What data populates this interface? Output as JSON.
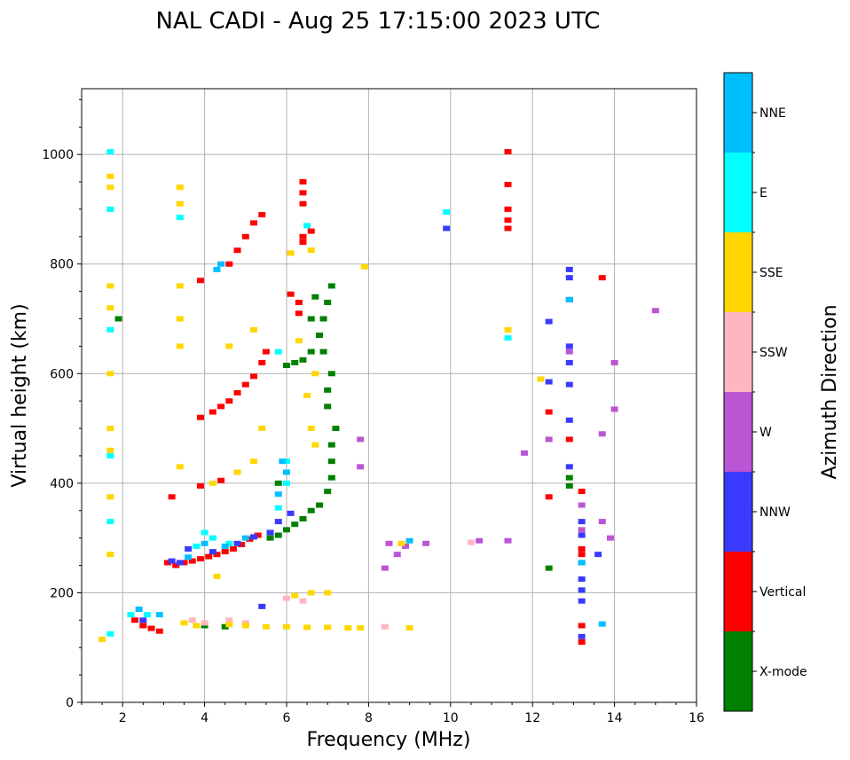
{
  "chart_data": {
    "type": "scatter",
    "title": "NAL CADI - Aug 25 17:15:00 2023 UTC",
    "xlabel": "Frequency (MHz)",
    "ylabel": "Virtual height (km)",
    "xlim": [
      1,
      16
    ],
    "ylim": [
      0,
      1120
    ],
    "xticks": [
      2,
      4,
      6,
      8,
      10,
      12,
      14,
      16
    ],
    "yticks": [
      0,
      200,
      400,
      600,
      800,
      1000
    ],
    "grid": true,
    "colorbar": {
      "label": "Azimuth Direction",
      "categories": [
        {
          "name": "NNE",
          "color": "#00bfff"
        },
        {
          "name": "E",
          "color": "#00ffff"
        },
        {
          "name": "SSE",
          "color": "#ffd700"
        },
        {
          "name": "SSW",
          "color": "#ffb6c1"
        },
        {
          "name": "W",
          "color": "#ba55d3"
        },
        {
          "name": "NNW",
          "color": "#3a3aff"
        },
        {
          "name": "Vertical",
          "color": "#ff0000"
        },
        {
          "name": "X-mode",
          "color": "#008000"
        }
      ]
    },
    "series": [
      {
        "name": "Vertical",
        "points": [
          [
            2.3,
            150
          ],
          [
            2.5,
            140
          ],
          [
            2.7,
            135
          ],
          [
            2.9,
            130
          ],
          [
            3.1,
            255
          ],
          [
            3.3,
            250
          ],
          [
            3.5,
            255
          ],
          [
            3.7,
            258
          ],
          [
            3.9,
            262
          ],
          [
            4.1,
            266
          ],
          [
            4.3,
            270
          ],
          [
            4.5,
            275
          ],
          [
            4.7,
            280
          ],
          [
            4.9,
            288
          ],
          [
            5.1,
            298
          ],
          [
            5.3,
            305
          ],
          [
            3.2,
            375
          ],
          [
            3.9,
            395
          ],
          [
            4.4,
            405
          ],
          [
            3.9,
            520
          ],
          [
            4.2,
            530
          ],
          [
            4.4,
            540
          ],
          [
            4.6,
            550
          ],
          [
            4.8,
            565
          ],
          [
            5.0,
            580
          ],
          [
            5.2,
            595
          ],
          [
            5.4,
            620
          ],
          [
            5.5,
            640
          ],
          [
            3.9,
            770
          ],
          [
            4.6,
            800
          ],
          [
            4.8,
            825
          ],
          [
            5.0,
            850
          ],
          [
            5.2,
            875
          ],
          [
            5.4,
            890
          ],
          [
            6.1,
            745
          ],
          [
            6.3,
            730
          ],
          [
            6.3,
            710
          ],
          [
            6.4,
            910
          ],
          [
            6.4,
            930
          ],
          [
            6.4,
            950
          ],
          [
            6.4,
            840
          ],
          [
            6.4,
            850
          ],
          [
            6.6,
            860
          ],
          [
            11.4,
            1005
          ],
          [
            11.4,
            945
          ],
          [
            11.4,
            900
          ],
          [
            11.4,
            880
          ],
          [
            11.4,
            865
          ],
          [
            13.2,
            385
          ],
          [
            13.2,
            280
          ],
          [
            13.2,
            270
          ],
          [
            13.2,
            140
          ],
          [
            13.2,
            110
          ],
          [
            12.9,
            480
          ],
          [
            12.4,
            530
          ],
          [
            12.4,
            375
          ],
          [
            13.7,
            775
          ]
        ]
      },
      {
        "name": "X-mode",
        "points": [
          [
            5.6,
            300
          ],
          [
            5.8,
            305
          ],
          [
            6.0,
            315
          ],
          [
            6.2,
            325
          ],
          [
            6.4,
            335
          ],
          [
            6.6,
            350
          ],
          [
            6.8,
            360
          ],
          [
            7.0,
            385
          ],
          [
            7.1,
            410
          ],
          [
            7.1,
            440
          ],
          [
            7.1,
            470
          ],
          [
            7.2,
            500
          ],
          [
            6.0,
            615
          ],
          [
            6.2,
            620
          ],
          [
            6.4,
            625
          ],
          [
            6.6,
            640
          ],
          [
            6.8,
            670
          ],
          [
            6.9,
            700
          ],
          [
            7.0,
            730
          ],
          [
            7.1,
            760
          ],
          [
            7.1,
            600
          ],
          [
            7.0,
            570
          ],
          [
            7.0,
            540
          ],
          [
            5.8,
            400
          ],
          [
            6.6,
            700
          ],
          [
            6.7,
            740
          ],
          [
            6.9,
            640
          ],
          [
            1.9,
            700
          ],
          [
            4.0,
            140
          ],
          [
            4.5,
            138
          ],
          [
            12.9,
            410
          ],
          [
            12.9,
            395
          ],
          [
            12.4,
            245
          ]
        ]
      },
      {
        "name": "NNW",
        "points": [
          [
            2.5,
            150
          ],
          [
            3.2,
            258
          ],
          [
            3.4,
            255
          ],
          [
            3.6,
            280
          ],
          [
            4.2,
            275
          ],
          [
            4.8,
            290
          ],
          [
            5.2,
            302
          ],
          [
            5.6,
            310
          ],
          [
            5.8,
            330
          ],
          [
            6.1,
            345
          ],
          [
            5.4,
            175
          ],
          [
            12.9,
            790
          ],
          [
            12.9,
            775
          ],
          [
            12.9,
            735
          ],
          [
            12.9,
            650
          ],
          [
            12.9,
            620
          ],
          [
            12.9,
            580
          ],
          [
            12.9,
            515
          ],
          [
            12.9,
            430
          ],
          [
            13.2,
            330
          ],
          [
            13.2,
            305
          ],
          [
            13.2,
            255
          ],
          [
            13.2,
            225
          ],
          [
            13.2,
            205
          ],
          [
            13.2,
            185
          ],
          [
            13.2,
            120
          ],
          [
            13.6,
            270
          ],
          [
            9.9,
            865
          ],
          [
            12.4,
            695
          ],
          [
            12.4,
            585
          ]
        ]
      },
      {
        "name": "W",
        "points": [
          [
            8.5,
            290
          ],
          [
            8.9,
            285
          ],
          [
            9.4,
            290
          ],
          [
            10.7,
            295
          ],
          [
            11.4,
            295
          ],
          [
            12.9,
            640
          ],
          [
            13.2,
            360
          ],
          [
            13.2,
            315
          ],
          [
            13.7,
            330
          ],
          [
            13.9,
            300
          ],
          [
            14.0,
            620
          ],
          [
            14.0,
            535
          ],
          [
            13.7,
            490
          ],
          [
            11.8,
            455
          ],
          [
            12.4,
            480
          ],
          [
            15.0,
            715
          ],
          [
            8.4,
            245
          ],
          [
            8.7,
            270
          ],
          [
            7.8,
            430
          ],
          [
            7.8,
            480
          ]
        ]
      },
      {
        "name": "SSW",
        "points": [
          [
            3.7,
            150
          ],
          [
            4.0,
            145
          ],
          [
            4.6,
            150
          ],
          [
            5.0,
            145
          ],
          [
            6.0,
            190
          ],
          [
            6.4,
            185
          ],
          [
            8.4,
            138
          ],
          [
            10.5,
            292
          ]
        ]
      },
      {
        "name": "SSE",
        "points": [
          [
            1.5,
            115
          ],
          [
            3.5,
            145
          ],
          [
            3.8,
            140
          ],
          [
            4.6,
            142
          ],
          [
            5.0,
            140
          ],
          [
            5.5,
            138
          ],
          [
            6.0,
            138
          ],
          [
            6.5,
            137
          ],
          [
            7.0,
            137
          ],
          [
            7.5,
            136
          ],
          [
            7.8,
            136
          ],
          [
            9.0,
            136
          ],
          [
            6.6,
            200
          ],
          [
            7.0,
            200
          ],
          [
            6.2,
            195
          ],
          [
            4.2,
            400
          ],
          [
            4.8,
            420
          ],
          [
            5.2,
            440
          ],
          [
            5.4,
            500
          ],
          [
            6.6,
            500
          ],
          [
            6.7,
            470
          ],
          [
            6.5,
            560
          ],
          [
            6.7,
            600
          ],
          [
            6.3,
            660
          ],
          [
            5.2,
            680
          ],
          [
            6.1,
            820
          ],
          [
            6.6,
            825
          ],
          [
            7.9,
            795
          ],
          [
            3.4,
            940
          ],
          [
            3.4,
            910
          ],
          [
            3.4,
            760
          ],
          [
            3.4,
            700
          ],
          [
            3.4,
            650
          ],
          [
            1.7,
            760
          ],
          [
            1.7,
            720
          ],
          [
            1.7,
            600
          ],
          [
            1.7,
            500
          ],
          [
            1.7,
            460
          ],
          [
            1.7,
            375
          ],
          [
            1.7,
            270
          ],
          [
            1.7,
            960
          ],
          [
            1.7,
            940
          ],
          [
            8.8,
            290
          ],
          [
            11.4,
            680
          ],
          [
            12.2,
            590
          ],
          [
            4.3,
            230
          ],
          [
            4.6,
            650
          ],
          [
            3.4,
            430
          ]
        ]
      },
      {
        "name": "E",
        "points": [
          [
            2.2,
            160
          ],
          [
            2.6,
            160
          ],
          [
            3.8,
            285
          ],
          [
            4.0,
            310
          ],
          [
            4.2,
            300
          ],
          [
            4.6,
            290
          ],
          [
            5.8,
            355
          ],
          [
            6.0,
            400
          ],
          [
            1.7,
            1005
          ],
          [
            1.7,
            900
          ],
          [
            1.7,
            680
          ],
          [
            1.7,
            450
          ],
          [
            1.7,
            330
          ],
          [
            1.7,
            125
          ],
          [
            3.4,
            885
          ],
          [
            6.5,
            870
          ],
          [
            9.9,
            895
          ],
          [
            11.4,
            665
          ],
          [
            5.8,
            640
          ],
          [
            6.0,
            440
          ]
        ]
      },
      {
        "name": "NNE",
        "points": [
          [
            2.4,
            170
          ],
          [
            2.9,
            160
          ],
          [
            3.6,
            265
          ],
          [
            4.0,
            290
          ],
          [
            4.5,
            285
          ],
          [
            5.0,
            300
          ],
          [
            5.8,
            380
          ],
          [
            5.9,
            440
          ],
          [
            6.0,
            420
          ],
          [
            4.4,
            800
          ],
          [
            4.3,
            790
          ],
          [
            9.0,
            295
          ],
          [
            12.9,
            735
          ],
          [
            13.7,
            143
          ],
          [
            13.2,
            255
          ]
        ]
      }
    ]
  }
}
